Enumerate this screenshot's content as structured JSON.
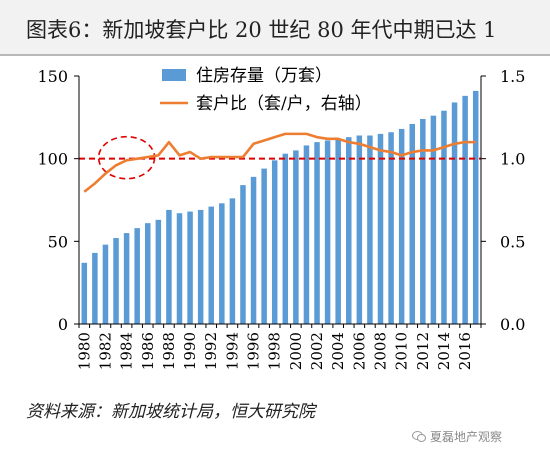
{
  "title": "图表6：新加坡套户比 20 世纪 80 年代中期已达 1",
  "source": "资料来源：新加坡统计局，恒大研究院",
  "watermark": "夏磊地产观察",
  "colors": {
    "bar": "#5b9bd5",
    "line": "#ed7d31",
    "ref": "#e00000",
    "axis": "#000000"
  },
  "chart_data": {
    "type": "bar+line",
    "categories": [
      "1980",
      "1981",
      "1982",
      "1983",
      "1984",
      "1985",
      "1986",
      "1987",
      "1988",
      "1989",
      "1990",
      "1991",
      "1992",
      "1993",
      "1994",
      "1995",
      "1996",
      "1997",
      "1998",
      "1999",
      "2000",
      "2001",
      "2002",
      "2003",
      "2004",
      "2005",
      "2006",
      "2007",
      "2008",
      "2009",
      "2010",
      "2011",
      "2012",
      "2013",
      "2014",
      "2015",
      "2016",
      "2017"
    ],
    "x_tick_labels": [
      "1980",
      "1982",
      "1984",
      "1986",
      "1988",
      "1990",
      "1992",
      "1994",
      "1996",
      "1998",
      "2000",
      "2002",
      "2004",
      "2006",
      "2008",
      "2010",
      "2012",
      "2014",
      "2016"
    ],
    "series": [
      {
        "name": "住房存量（万套）",
        "type": "bar",
        "axis": "left",
        "values": [
          37,
          43,
          48,
          52,
          55,
          58,
          61,
          63,
          69,
          67,
          68,
          69,
          71,
          73,
          76,
          84,
          89,
          94,
          99,
          103,
          105,
          108,
          110,
          111,
          112,
          113,
          114,
          114,
          115,
          116,
          118,
          121,
          124,
          126,
          129,
          134,
          138,
          141
        ]
      },
      {
        "name": "套户比（套/户，右轴）",
        "type": "line",
        "axis": "right",
        "values": [
          0.8,
          0.85,
          0.91,
          0.96,
          0.99,
          1.0,
          1.01,
          1.02,
          1.1,
          1.02,
          1.04,
          1.0,
          1.01,
          1.01,
          1.01,
          1.01,
          1.09,
          1.11,
          1.13,
          1.15,
          1.15,
          1.15,
          1.13,
          1.12,
          1.12,
          1.1,
          1.09,
          1.07,
          1.05,
          1.04,
          1.02,
          1.04,
          1.05,
          1.05,
          1.07,
          1.09,
          1.1,
          1.1
        ]
      }
    ],
    "y_left": {
      "min": 0,
      "max": 150,
      "ticks": [
        0,
        50,
        100,
        150
      ]
    },
    "y_right": {
      "min": 0.0,
      "max": 1.5,
      "ticks": [
        "0.0",
        "0.5",
        "1.0",
        "1.5"
      ]
    },
    "reference_line": {
      "value_right": 1.0,
      "style": "dashed",
      "color": "#e00000"
    },
    "annotation": {
      "type": "dashed-ellipse",
      "around_year": "1984",
      "color": "#e00000"
    },
    "legend_position": "top-left",
    "grid": false
  }
}
